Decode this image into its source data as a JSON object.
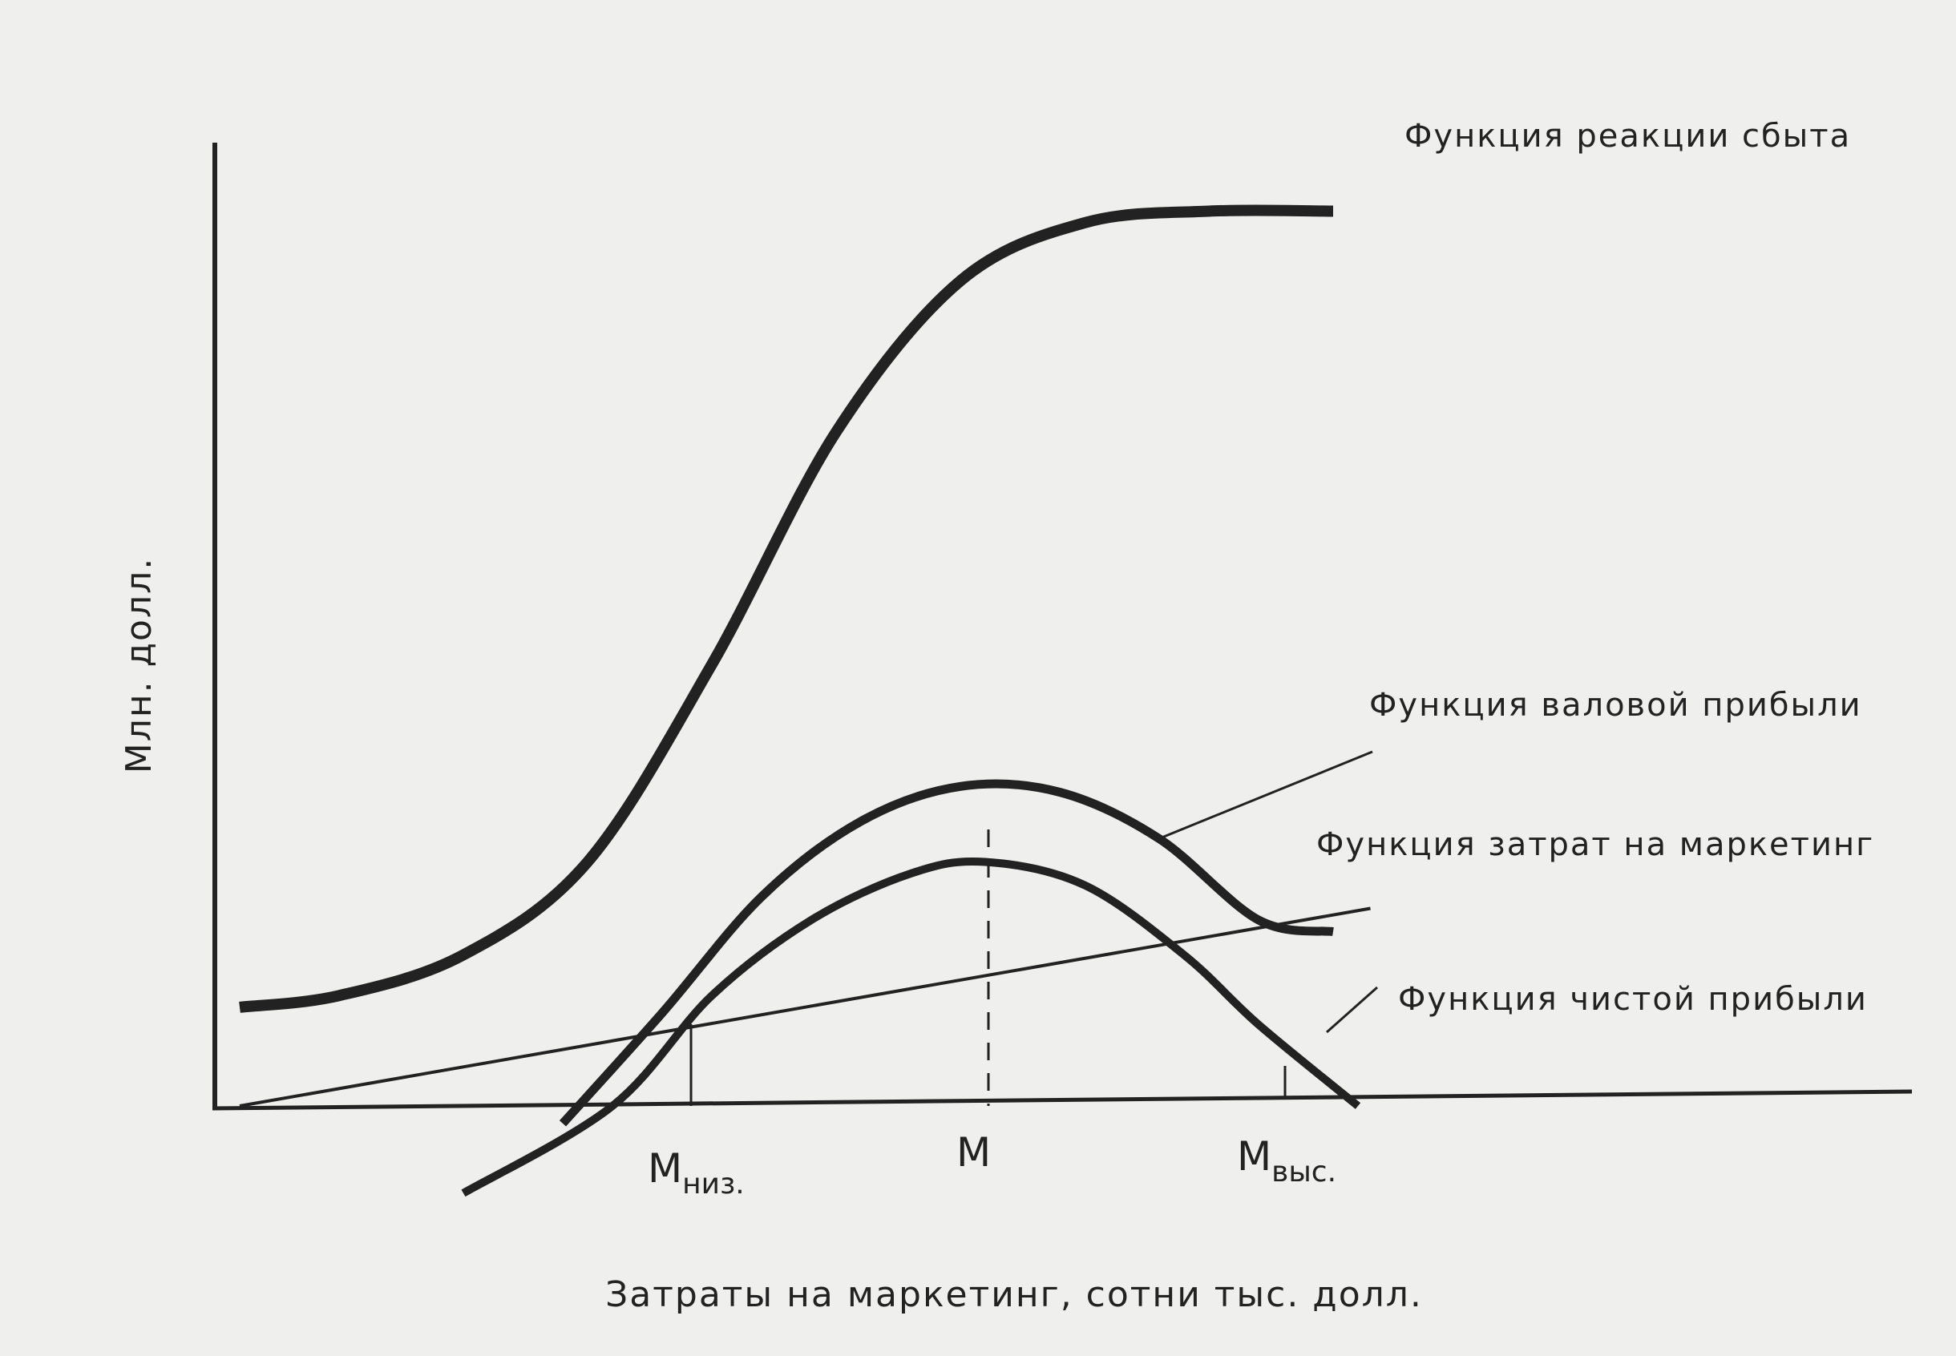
{
  "chart_data": {
    "type": "line",
    "xlabel": "Затраты на маркетинг, сотни тыс. долл.",
    "ylabel": "Млн. долл.",
    "x_markers": [
      {
        "main": "М",
        "sub": "низ.",
        "x": 1.9
      },
      {
        "main": "М",
        "sub": "",
        "x": 3.1
      },
      {
        "main": "М",
        "sub": "выс.",
        "x": 4.3
      }
    ],
    "xlim": [
      0,
      7
    ],
    "ylim": [
      -1.2,
      7.7
    ],
    "series": [
      {
        "name": "Функция реакции сбыта",
        "x": [
          0.1,
          0.5,
          1.0,
          1.5,
          2.0,
          2.5,
          3.0,
          3.5,
          4.0,
          4.5
        ],
        "y": [
          0.85,
          0.95,
          1.3,
          2.1,
          3.8,
          5.8,
          7.1,
          7.6,
          7.7,
          7.7
        ]
      },
      {
        "name": "Функция валовой прибыли",
        "x": [
          1.4,
          1.8,
          2.2,
          2.6,
          3.0,
          3.4,
          3.8,
          4.2,
          4.5
        ],
        "y": [
          -0.15,
          0.8,
          1.8,
          2.45,
          2.75,
          2.7,
          2.3,
          1.6,
          1.5
        ]
      },
      {
        "name": "Функция затрат на маркетинг",
        "x": [
          0.1,
          4.65
        ],
        "y": [
          0.0,
          1.7
        ]
      },
      {
        "name": "Функция чистой прибыли",
        "x": [
          1.0,
          1.6,
          2.0,
          2.4,
          2.8,
          3.1,
          3.5,
          3.9,
          4.2,
          4.6
        ],
        "y": [
          -0.75,
          0.0,
          0.95,
          1.6,
          2.0,
          2.1,
          1.9,
          1.3,
          0.7,
          0.0
        ]
      }
    ]
  }
}
